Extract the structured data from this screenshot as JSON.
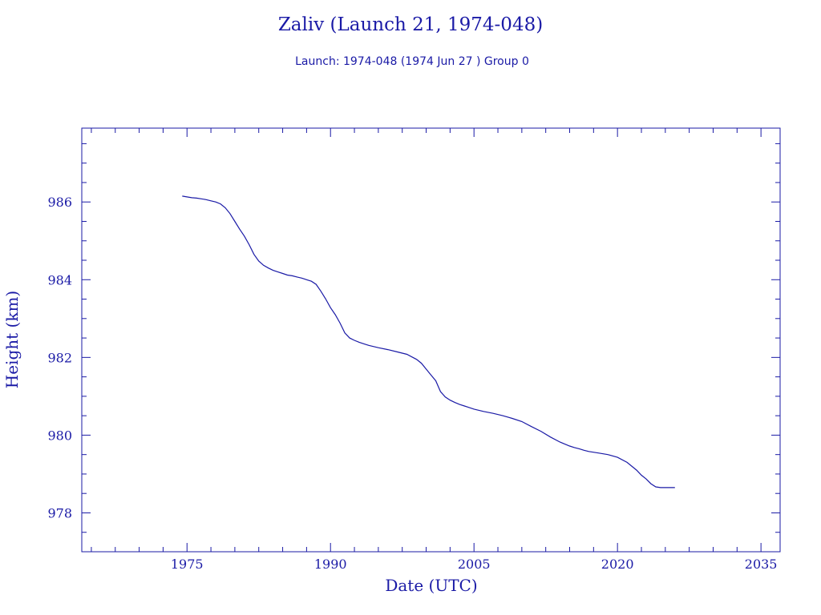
{
  "chart_data": {
    "type": "line",
    "title": "Zaliv (Launch 21, 1974-048)",
    "subtitle": "Launch: 1974-048  (1974 Jun 27 )  Group 0",
    "xlabel": "Date (UTC)",
    "ylabel": "Height (km)",
    "xlim": [
      1964,
      2037
    ],
    "ylim": [
      977,
      987.9
    ],
    "x_ticks": [
      1975,
      1990,
      2005,
      2020,
      2035
    ],
    "y_ticks": [
      978,
      980,
      982,
      984,
      986
    ],
    "grid": false,
    "legend": "none",
    "color": "#1a1aa6",
    "series": [
      {
        "x": [
          1974.5,
          1975.0,
          1975.5,
          1976.0,
          1976.5,
          1977.0,
          1977.5,
          1978.0,
          1978.5,
          1979.0,
          1979.5,
          1980.0,
          1980.5,
          1981.0,
          1981.5,
          1982.0,
          1982.5,
          1983.0,
          1983.5,
          1984.0,
          1984.5,
          1985.0,
          1985.5,
          1986.0,
          1986.5,
          1987.0,
          1987.5,
          1988.0,
          1988.5,
          1989.0,
          1989.5,
          1990.0,
          1990.5,
          1991.0,
          1991.5,
          1992.0,
          1992.5,
          1993.0,
          1993.5,
          1994.0,
          1995.0,
          1996.0,
          1997.0,
          1998.0,
          1999.0,
          1999.5,
          2000.0,
          2000.5,
          2001.0,
          2001.5,
          2002.0,
          2002.5,
          2003.0,
          2003.5,
          2004.0,
          2004.5,
          2005.0,
          2006.0,
          2007.0,
          2008.0,
          2009.0,
          2010.0,
          2011.0,
          2012.0,
          2013.0,
          2014.0,
          2014.5,
          2015.0,
          2015.5,
          2016.0,
          2016.5,
          2017.0,
          2018.0,
          2019.0,
          2020.0,
          2021.0,
          2022.0,
          2022.5,
          2023.0,
          2023.5,
          2024.0,
          2024.5,
          2025.0,
          2025.5,
          2026.0
        ],
        "y": [
          986.15,
          986.13,
          986.11,
          986.1,
          986.08,
          986.06,
          986.03,
          986.0,
          985.95,
          985.85,
          985.7,
          985.5,
          985.3,
          985.12,
          984.9,
          984.65,
          984.48,
          984.37,
          984.3,
          984.24,
          984.2,
          984.16,
          984.12,
          984.1,
          984.07,
          984.04,
          984.0,
          983.96,
          983.88,
          983.7,
          983.5,
          983.28,
          983.1,
          982.88,
          982.63,
          982.5,
          982.44,
          982.39,
          982.35,
          982.31,
          982.25,
          982.2,
          982.14,
          982.08,
          981.95,
          981.85,
          981.7,
          981.55,
          981.4,
          981.12,
          980.98,
          980.9,
          980.84,
          980.79,
          980.75,
          980.71,
          980.67,
          980.61,
          980.56,
          980.5,
          980.43,
          980.35,
          980.22,
          980.1,
          979.95,
          979.82,
          979.77,
          979.72,
          979.68,
          979.65,
          979.61,
          979.58,
          979.54,
          979.5,
          979.43,
          979.3,
          979.1,
          978.97,
          978.87,
          978.75,
          978.67,
          978.65,
          978.65,
          978.65,
          978.65
        ]
      }
    ]
  }
}
